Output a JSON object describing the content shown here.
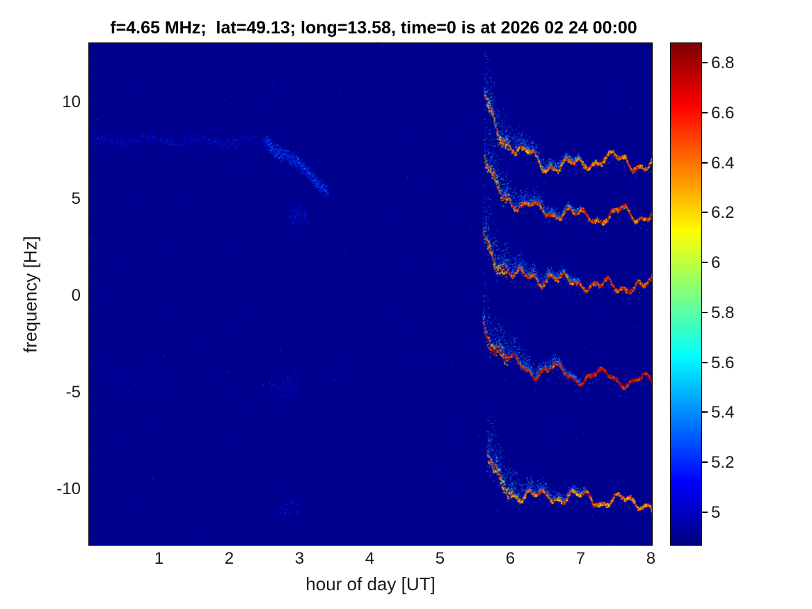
{
  "chart_data": {
    "type": "heatmap",
    "subtype": "doppler-spectrogram",
    "title": "f=4.65 MHz;  lat=49.13; long=13.58, time=0 is at 2026 02 24 00:00",
    "xlabel": "hour of day [UT]",
    "ylabel": "frequency [Hz]",
    "xlim": [
      0,
      8.01
    ],
    "ylim": [
      -12.9,
      13.05
    ],
    "xticks": [
      1,
      2,
      3,
      4,
      5,
      6,
      7,
      8
    ],
    "yticks": [
      10,
      5,
      0,
      -5,
      -10
    ],
    "grid": false,
    "colormap": "jet",
    "background_value": 4.9,
    "colorbar": {
      "position": "right",
      "vmin": 4.87,
      "vmax": 6.88,
      "ticks": [
        6.8,
        6.6,
        6.4,
        6.2,
        6,
        5.8,
        5.6,
        5.4,
        5.2,
        5
      ]
    },
    "traces": [
      {
        "name": "doppler-trace-1",
        "x_start": 5.62,
        "x_end": 8.01,
        "y_head": 10.3,
        "y_plateau": 7.2,
        "y_end": 7.0,
        "decay": 0.22,
        "intensity": 6.35
      },
      {
        "name": "doppler-trace-2",
        "x_start": 5.62,
        "x_end": 8.01,
        "y_head": 7.2,
        "y_plateau": 4.5,
        "y_end": 4.2,
        "decay": 0.22,
        "intensity": 6.45
      },
      {
        "name": "doppler-trace-3",
        "x_start": 5.6,
        "x_end": 8.01,
        "y_head": 3.4,
        "y_plateau": 0.9,
        "y_end": 0.5,
        "decay": 0.22,
        "intensity": 6.5
      },
      {
        "name": "doppler-trace-4",
        "x_start": 5.6,
        "x_end": 8.01,
        "y_head": -1.5,
        "y_plateau": -4.0,
        "y_end": -4.4,
        "decay": 0.24,
        "intensity": 6.65
      },
      {
        "name": "doppler-trace-5",
        "x_start": 5.66,
        "x_end": 8.01,
        "y_head": -8.6,
        "y_plateau": -10.3,
        "y_end": -10.8,
        "decay": 0.2,
        "intensity": 6.35
      }
    ],
    "faint_features": [
      {
        "x_start": 0.05,
        "x_end": 2.55,
        "y": 8.0,
        "spread": 0.35,
        "density": 0.35,
        "max_value": 5.45
      },
      {
        "x_start": 2.5,
        "x_end": 3.4,
        "y_start": 8.1,
        "y_end": 5.5,
        "spread": 0.45,
        "density": 1.6,
        "max_value": 5.75
      },
      {
        "x_start": 2.85,
        "x_end": 3.1,
        "y": 4.0,
        "spread": 0.7,
        "density": 0.8,
        "max_value": 5.5
      },
      {
        "x_start": 0.1,
        "x_end": 1.2,
        "y": -4.2,
        "spread": 0.6,
        "density": 0.25,
        "max_value": 5.3
      },
      {
        "x_start": 2.55,
        "x_end": 3.0,
        "y": -4.6,
        "spread": 0.9,
        "density": 0.5,
        "max_value": 5.4
      },
      {
        "x_start": 2.7,
        "x_end": 3.0,
        "y": -11.0,
        "spread": 0.6,
        "density": 0.5,
        "max_value": 5.35
      }
    ]
  }
}
